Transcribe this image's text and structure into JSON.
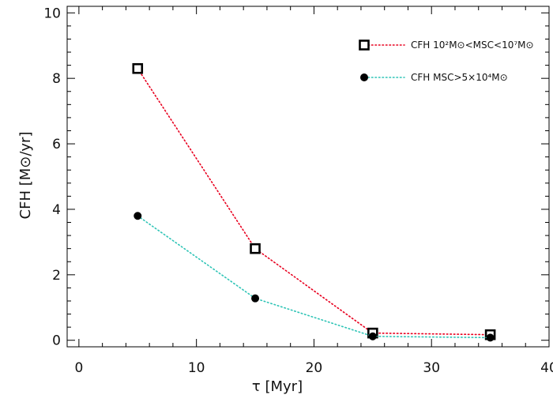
{
  "chart_data": {
    "type": "line",
    "title": "",
    "xlabel": "τ [Myr]",
    "ylabel": "CFH [M⊙/yr]",
    "xlim": [
      -1,
      40
    ],
    "ylim": [
      -0.2,
      10.2
    ],
    "xticks": [
      0,
      10,
      20,
      30,
      40
    ],
    "yticks": [
      0,
      2,
      4,
      6,
      8,
      10
    ],
    "grid": false,
    "legend_position": "top-right",
    "series": [
      {
        "name": "CFH 10²M⊙<MSC<10⁷M⊙",
        "marker": "open-square",
        "line_style": "dotted",
        "color": "#e8001f",
        "x": [
          5,
          15,
          25,
          35
        ],
        "y": [
          8.3,
          2.8,
          0.22,
          0.17
        ]
      },
      {
        "name": "CFH MSC>5×10⁴M⊙",
        "marker": "filled-circle",
        "line_style": "dotted",
        "color": "#2ec4b6",
        "x": [
          5,
          15,
          25,
          35
        ],
        "y": [
          3.8,
          1.28,
          0.12,
          0.08
        ]
      }
    ]
  }
}
